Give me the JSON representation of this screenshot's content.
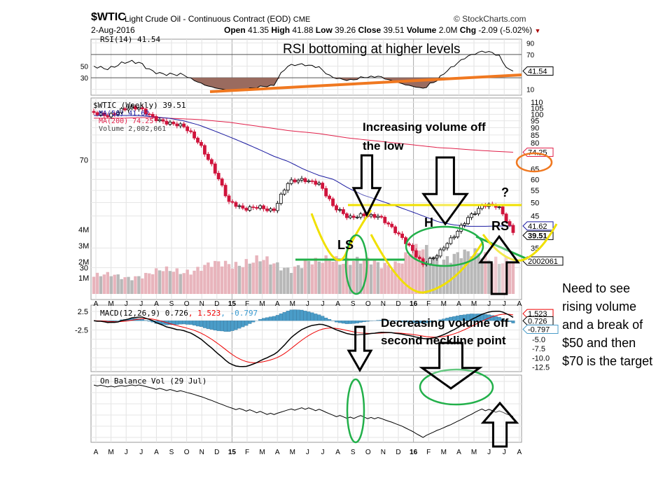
{
  "header": {
    "symbol": "$WTIC",
    "name": "Light Crude Oil - Continuous Contract (EOD)",
    "exchange": "CME",
    "source": "© StockCharts.com",
    "date": "2-Aug-2016",
    "open_label": "Open",
    "open": "41.35",
    "high_label": "High",
    "high": "41.88",
    "low_label": "Low",
    "low": "39.26",
    "close_label": "Close",
    "close": "39.51",
    "volume_label": "Volume",
    "volume": "2.0M",
    "chg_label": "Chg",
    "chg": "-2.09 (-5.02%)"
  },
  "colors": {
    "up": "#000000",
    "down": "#d0143c",
    "ma50": "#1a1aa0",
    "ma200": "#e0204a",
    "volume_down": "#e8b4bc",
    "volume_up": "#b8b8b8",
    "macd_hist": "#4a9cc8",
    "annotation_green": "#22b04a",
    "annotation_yellow": "#f0e000",
    "annotation_orange": "#f07820"
  },
  "legends": {
    "rsi": "RSI(14) 41.54",
    "price": "$WTIC (Weekly) 39.51",
    "ma50": "MA(50) 41.62",
    "ma200": "MA(200) 74.25",
    "volume": "Volume 2,002,061",
    "macd": "MACD(12,26,9) 0.726",
    "macd_signal": ", 1.523",
    "macd_hist": ", -0.797",
    "obv": "On Balance Vol (29 Jul)"
  },
  "annotations": {
    "rsi": "RSI bottoming at higher levels",
    "volume_up": "Increasing volume off the low",
    "volume_down": "Decreasing volume off second neckline point",
    "ls": "LS",
    "h": "H",
    "rs": "RS",
    "question": "?",
    "note": "Need to see rising volume and a break of $50 and then $70 is the target"
  },
  "badges": {
    "ma200": "74.25",
    "ma50": "41.62",
    "close": "39.51",
    "volume": "2002061",
    "macd": "0.726",
    "macd_signal": "1.523",
    "macd_hist": "-0.797",
    "rsi": "41.54"
  },
  "chart_data": {
    "type": "candlestick",
    "title": "$WTIC Light Crude Oil - Continuous Contract (EOD) Weekly",
    "months": [
      "A",
      "M",
      "J",
      "J",
      "A",
      "S",
      "O",
      "N",
      "D",
      "15",
      "F",
      "M",
      "A",
      "M",
      "J",
      "J",
      "A",
      "S",
      "O",
      "N",
      "D",
      "16",
      "F",
      "M",
      "A",
      "M",
      "J",
      "J",
      "A"
    ],
    "monthly_close": [
      101,
      100,
      104,
      104,
      98,
      94,
      90,
      80,
      66,
      50,
      47,
      49,
      47,
      58,
      60,
      59,
      48,
      44,
      46,
      45,
      40,
      36,
      31,
      33,
      38,
      45,
      49,
      48,
      39.51
    ],
    "monthly_volume_m": [
      1.2,
      1.1,
      1.0,
      1.2,
      1.3,
      1.4,
      1.5,
      1.6,
      1.7,
      1.9,
      2.1,
      2.0,
      1.8,
      1.7,
      1.9,
      1.8,
      2.3,
      2.2,
      1.9,
      1.8,
      2.0,
      2.4,
      2.6,
      2.3,
      2.5,
      2.3,
      2.4,
      2.3,
      2.0
    ],
    "monthly_ma50": [
      99,
      99,
      99,
      99,
      98,
      97,
      95,
      92,
      88,
      84,
      80,
      76,
      72,
      69,
      65,
      62,
      60,
      56,
      53,
      51,
      49,
      47,
      45,
      43,
      42,
      41.5,
      41.5,
      41.6,
      41.62
    ],
    "monthly_ma200": [
      97,
      97,
      97,
      97.5,
      97.5,
      97,
      96.5,
      96,
      95,
      94,
      92.5,
      91,
      89.5,
      88,
      87,
      86,
      84.5,
      83,
      82,
      81,
      80,
      79,
      78,
      77,
      76.5,
      75.8,
      75.2,
      74.7,
      74.25
    ],
    "price_ticks": [
      110,
      105,
      100,
      95,
      90,
      85,
      80,
      70,
      65,
      60,
      55,
      50,
      45,
      35,
      30
    ],
    "volume_ticks": [
      "4M",
      "3M",
      "2M",
      "1M"
    ],
    "rsi_ticks": [
      90,
      70,
      50,
      30,
      10
    ],
    "macd_ticks": [
      "2.5",
      "-2.5",
      "-5.0",
      "-7.5",
      "-10.0",
      "-12.5"
    ],
    "ylim": [
      30,
      110
    ]
  }
}
